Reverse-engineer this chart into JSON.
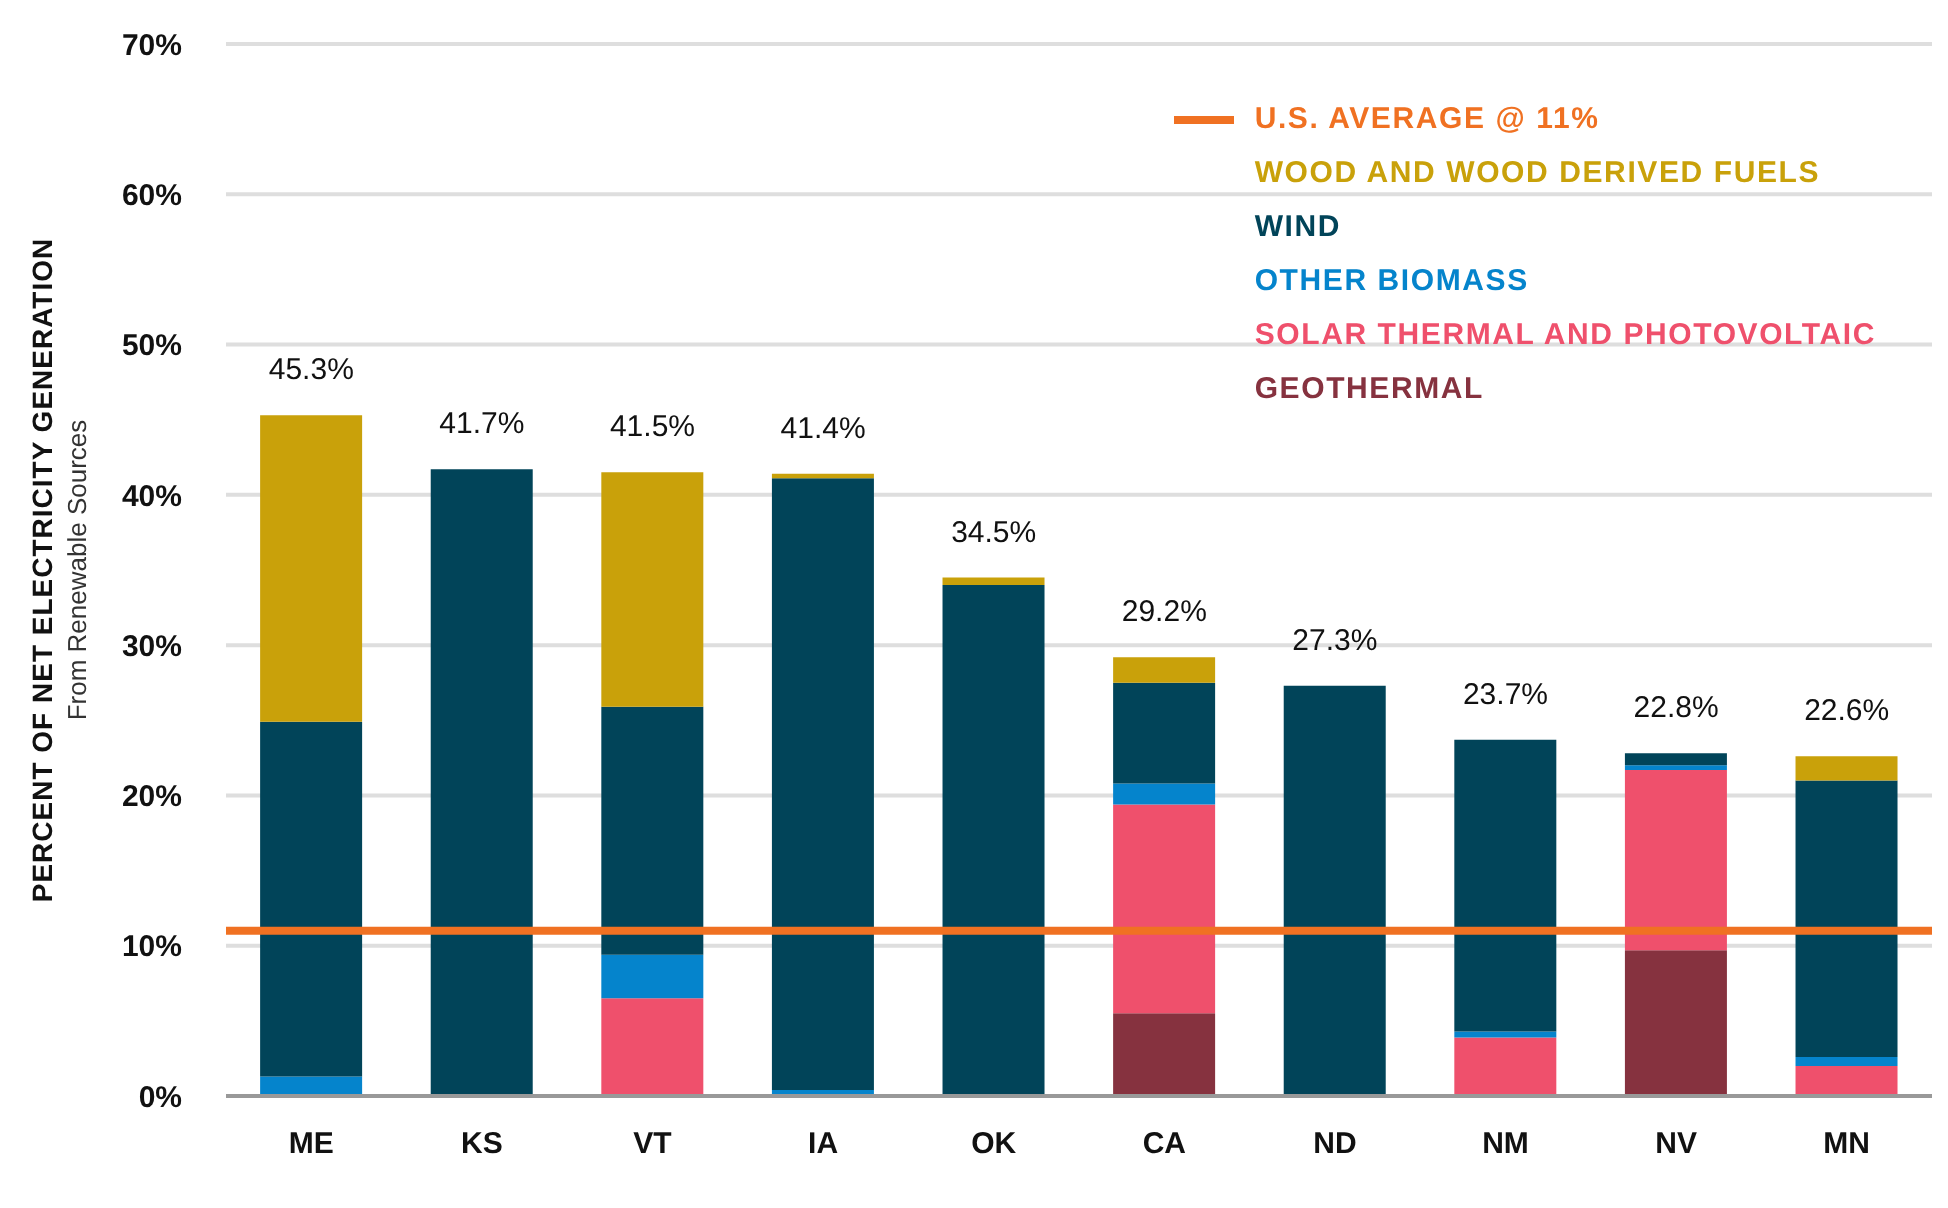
{
  "chart_data": {
    "type": "bar",
    "stacked": true,
    "categories": [
      "ME",
      "KS",
      "VT",
      "IA",
      "OK",
      "CA",
      "ND",
      "NM",
      "NV",
      "MN"
    ],
    "series": [
      {
        "name": "GEOTHERMAL",
        "color": "#86323f",
        "values": [
          null,
          null,
          null,
          null,
          null,
          5.5,
          null,
          null,
          9.7,
          null
        ]
      },
      {
        "name": "SOLAR THERMAL AND PHOTOVOLTAIC",
        "color": "#ef506c",
        "values": [
          null,
          null,
          6.5,
          null,
          null,
          13.9,
          null,
          3.9,
          12.0,
          2.0
        ]
      },
      {
        "name": "OTHER BIOMASS",
        "color": "#0584cc",
        "values": [
          1.3,
          null,
          2.9,
          0.4,
          null,
          1.4,
          null,
          0.4,
          0.3,
          0.6
        ]
      },
      {
        "name": "WIND",
        "color": "#014459",
        "values": [
          23.6,
          41.7,
          16.5,
          40.7,
          34.0,
          6.7,
          27.3,
          19.4,
          0.8,
          18.4
        ]
      },
      {
        "name": "WOOD AND WOOD DERIVED FUELS",
        "color": "#c9a10a",
        "values": [
          20.4,
          null,
          15.6,
          0.3,
          0.5,
          1.7,
          null,
          null,
          null,
          1.6
        ]
      }
    ],
    "totals": [
      "45.3%",
      "41.7%",
      "41.5%",
      "41.4%",
      "34.5%",
      "29.2%",
      "27.3%",
      "23.7%",
      "22.8%",
      "22.6%"
    ],
    "ylabel": "PERCENT OF NET ELECTRICITY GENERATION",
    "annotations": [
      "From Renewable Sources"
    ],
    "ylim": [
      0,
      70
    ],
    "yticks": [
      {
        "value": 0,
        "label": "0%"
      },
      {
        "value": 10,
        "label": "10%"
      },
      {
        "value": 20,
        "label": "20%"
      },
      {
        "value": 30,
        "label": "30%"
      },
      {
        "value": 40,
        "label": "40%"
      },
      {
        "value": 50,
        "label": "50%"
      },
      {
        "value": 60,
        "label": "60%"
      },
      {
        "value": 70,
        "label": "70%"
      }
    ],
    "ref_lines": [
      {
        "axis": "y",
        "value": 11,
        "label": "U.S. AVERAGE @ 11%",
        "color": "#f07122"
      }
    ],
    "grid": "y",
    "legend": "top right"
  }
}
